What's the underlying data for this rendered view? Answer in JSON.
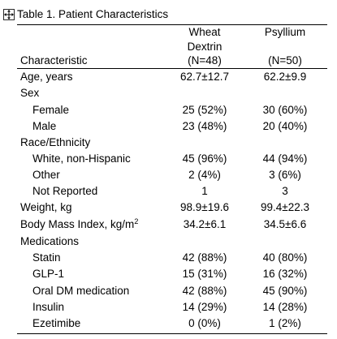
{
  "caption": "Table 1. Patient Characteristics",
  "header": {
    "characteristic_label": "Characteristic",
    "col_a": {
      "line1": "Wheat",
      "line2": "Dextrin",
      "line3": "(N=48)"
    },
    "col_b": {
      "line1": "Psyllium",
      "line3": "(N=50)"
    }
  },
  "rows": [
    {
      "label": "Age, years",
      "a": "62.7±12.7",
      "b": "62.2±9.9",
      "indent": false
    },
    {
      "label": "Sex",
      "a": "",
      "b": "",
      "indent": false
    },
    {
      "label": "Female",
      "a": "25 (52%)",
      "b": "30 (60%)",
      "indent": true
    },
    {
      "label": "Male",
      "a": "23 (48%)",
      "b": "20 (40%)",
      "indent": true
    },
    {
      "label": "Race/Ethnicity",
      "a": "",
      "b": "",
      "indent": false
    },
    {
      "label": "White, non-Hispanic",
      "a": "45 (96%)",
      "b": "44 (94%)",
      "indent": true
    },
    {
      "label": "Other",
      "a": "2 (4%)",
      "b": "3 (6%)",
      "indent": true
    },
    {
      "label": "Not Reported",
      "a": "1",
      "b": "3",
      "indent": true
    },
    {
      "label": "Weight, kg",
      "a": "98.9±19.6",
      "b": "99.4±22.3",
      "indent": false
    },
    {
      "label": "Body Mass Index, kg/m",
      "sup": "2",
      "a": "34.2±6.1",
      "b": "34.5±6.6",
      "indent": false
    },
    {
      "label": "Medications",
      "a": "",
      "b": "",
      "indent": false
    },
    {
      "label": "Statin",
      "a": "42 (88%)",
      "b": "40 (80%)",
      "indent": true
    },
    {
      "label": "GLP-1",
      "a": "15 (31%)",
      "b": "16 (32%)",
      "indent": true
    },
    {
      "label": "Oral DM medication",
      "a": "42 (88%)",
      "b": "45 (90%)",
      "indent": true
    },
    {
      "label": "Insulin",
      "a": "14 (29%)",
      "b": "14 (28%)",
      "indent": true
    },
    {
      "label": "Ezetimibe",
      "a": "0 (0%)",
      "b": "1 (2%)",
      "indent": true
    }
  ]
}
